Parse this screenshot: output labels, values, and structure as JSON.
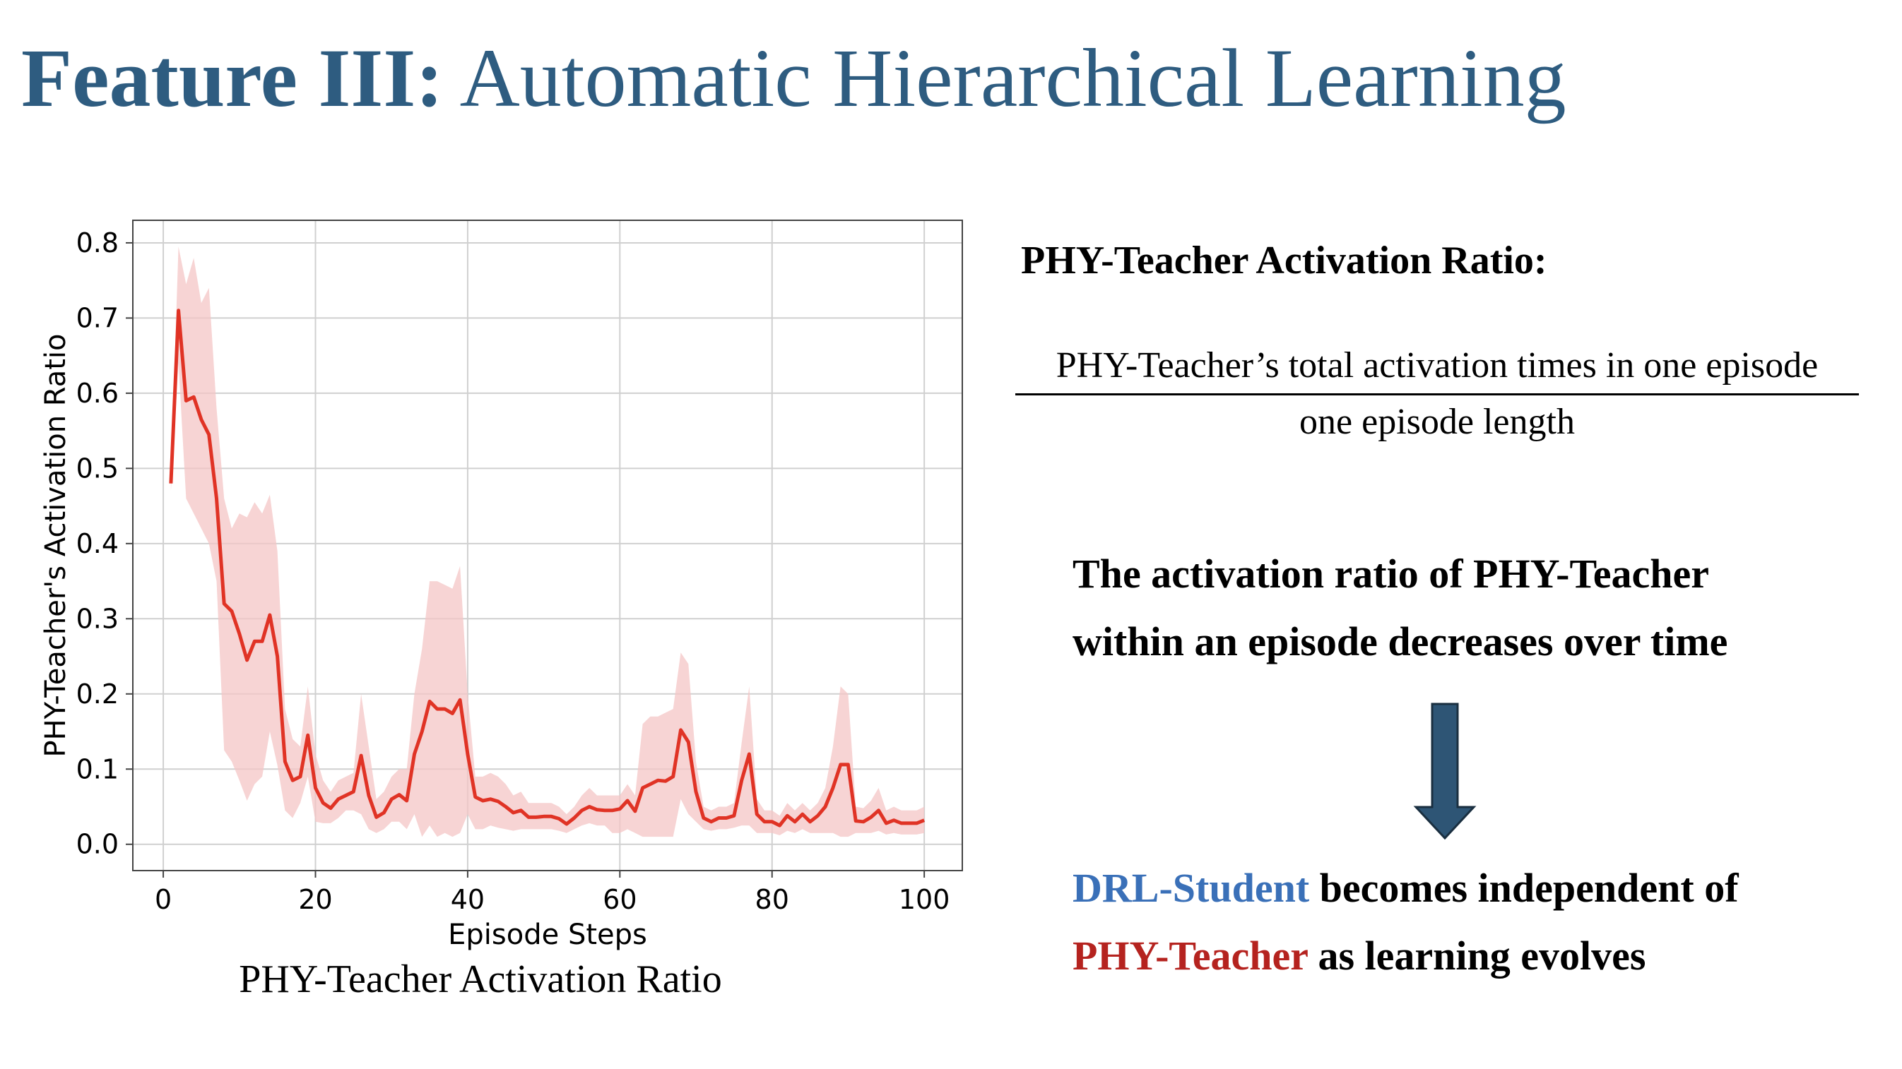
{
  "title": {
    "bold": "Feature III:",
    "rest": "Automatic Hierarchical Learning"
  },
  "chart_data": {
    "type": "line",
    "title": "",
    "caption": "PHY-Teacher Activation Ratio",
    "xlabel": "Episode Steps",
    "ylabel": "PHY-Teacher's Activation Ratio",
    "xlim": [
      -4,
      105
    ],
    "ylim": [
      -0.035,
      0.83
    ],
    "xticks": [
      0,
      20,
      40,
      60,
      80,
      100
    ],
    "yticks": [
      0.0,
      0.1,
      0.2,
      0.3,
      0.4,
      0.5,
      0.6,
      0.7,
      0.8
    ],
    "grid": true,
    "colors": {
      "line": "#e03325",
      "band": "#f4c6c6"
    },
    "series": [
      {
        "x": [
          1,
          2,
          3,
          4,
          5,
          6,
          7,
          8,
          9,
          10,
          11,
          12,
          13,
          14,
          15,
          16,
          17,
          18,
          19,
          20,
          21,
          22,
          23,
          24,
          25,
          26,
          27,
          28,
          29,
          30,
          31,
          32,
          33,
          34,
          35,
          36,
          37,
          38,
          39,
          40,
          41,
          42,
          43,
          44,
          45,
          46,
          47,
          48,
          49,
          50,
          51,
          52,
          53,
          54,
          55,
          56,
          57,
          58,
          59,
          60,
          61,
          62,
          63,
          64,
          65,
          66,
          67,
          68,
          69,
          70,
          71,
          72,
          73,
          74,
          75,
          76,
          77,
          78,
          79,
          80,
          81,
          82,
          83,
          84,
          85,
          86,
          87,
          88,
          89,
          90,
          91,
          92,
          93,
          94,
          95,
          96,
          97,
          98,
          99,
          100
        ],
        "values": [
          0.48,
          0.71,
          0.59,
          0.595,
          0.565,
          0.545,
          0.46,
          0.32,
          0.31,
          0.28,
          0.245,
          0.27,
          0.27,
          0.305,
          0.25,
          0.11,
          0.085,
          0.09,
          0.145,
          0.075,
          0.055,
          0.048,
          0.06,
          0.065,
          0.07,
          0.118,
          0.065,
          0.036,
          0.042,
          0.06,
          0.066,
          0.058,
          0.12,
          0.15,
          0.19,
          0.18,
          0.18,
          0.174,
          0.192,
          0.12,
          0.063,
          0.058,
          0.06,
          0.057,
          0.05,
          0.042,
          0.045,
          0.036,
          0.036,
          0.037,
          0.037,
          0.034,
          0.027,
          0.035,
          0.045,
          0.05,
          0.046,
          0.045,
          0.045,
          0.047,
          0.058,
          0.044,
          0.075,
          0.08,
          0.085,
          0.084,
          0.09,
          0.152,
          0.136,
          0.07,
          0.035,
          0.03,
          0.035,
          0.035,
          0.038,
          0.085,
          0.12,
          0.04,
          0.03,
          0.03,
          0.025,
          0.038,
          0.03,
          0.04,
          0.03,
          0.038,
          0.05,
          0.075,
          0.106,
          0.106,
          0.031,
          0.03,
          0.036,
          0.045,
          0.028,
          0.032,
          0.028,
          0.028,
          0.028,
          0.032
        ],
        "upper": [
          0.49,
          0.795,
          0.745,
          0.78,
          0.72,
          0.74,
          0.58,
          0.46,
          0.42,
          0.44,
          0.435,
          0.455,
          0.44,
          0.465,
          0.39,
          0.18,
          0.14,
          0.13,
          0.21,
          0.12,
          0.085,
          0.07,
          0.085,
          0.09,
          0.095,
          0.2,
          0.13,
          0.06,
          0.07,
          0.09,
          0.1,
          0.1,
          0.2,
          0.26,
          0.35,
          0.35,
          0.345,
          0.34,
          0.37,
          0.2,
          0.09,
          0.09,
          0.095,
          0.09,
          0.08,
          0.065,
          0.07,
          0.055,
          0.055,
          0.055,
          0.055,
          0.05,
          0.04,
          0.05,
          0.065,
          0.075,
          0.065,
          0.065,
          0.065,
          0.065,
          0.08,
          0.065,
          0.16,
          0.17,
          0.17,
          0.175,
          0.18,
          0.255,
          0.24,
          0.11,
          0.05,
          0.045,
          0.05,
          0.05,
          0.055,
          0.135,
          0.21,
          0.06,
          0.045,
          0.045,
          0.038,
          0.055,
          0.045,
          0.055,
          0.045,
          0.055,
          0.075,
          0.13,
          0.21,
          0.2,
          0.05,
          0.048,
          0.058,
          0.075,
          0.045,
          0.05,
          0.045,
          0.045,
          0.045,
          0.05
        ],
        "lower": [
          0.47,
          0.64,
          0.46,
          0.44,
          0.42,
          0.4,
          0.35,
          0.125,
          0.11,
          0.085,
          0.058,
          0.08,
          0.09,
          0.15,
          0.105,
          0.045,
          0.035,
          0.055,
          0.09,
          0.03,
          0.028,
          0.028,
          0.035,
          0.045,
          0.045,
          0.04,
          0.02,
          0.015,
          0.02,
          0.03,
          0.03,
          0.02,
          0.04,
          0.01,
          0.025,
          0.01,
          0.015,
          0.01,
          0.015,
          0.04,
          0.02,
          0.02,
          0.025,
          0.022,
          0.02,
          0.018,
          0.02,
          0.02,
          0.02,
          0.02,
          0.02,
          0.018,
          0.015,
          0.02,
          0.025,
          0.028,
          0.025,
          0.025,
          0.015,
          0.015,
          0.02,
          0.015,
          0.01,
          0.01,
          0.01,
          0.01,
          0.01,
          0.06,
          0.04,
          0.03,
          0.02,
          0.018,
          0.02,
          0.02,
          0.022,
          0.025,
          0.025,
          0.015,
          0.015,
          0.015,
          0.012,
          0.018,
          0.015,
          0.02,
          0.015,
          0.015,
          0.015,
          0.015,
          0.01,
          0.01,
          0.015,
          0.015,
          0.015,
          0.018,
          0.013,
          0.015,
          0.013,
          0.013,
          0.013,
          0.015
        ]
      }
    ]
  },
  "formula": {
    "heading": "PHY-Teacher Activation Ratio:",
    "numerator": "PHY-Teacher’s total activation times in one episode",
    "denominator": "one episode length"
  },
  "statement": {
    "line1": "The activation ratio of PHY-Teacher",
    "line2": "within an episode decreases over time"
  },
  "arrow": {
    "icon": "down-arrow-icon",
    "fill": "#2e5575",
    "stroke": "#1a2f40"
  },
  "conclusion": {
    "student": "DRL-Student",
    "middle": " becomes independent of",
    "teacher": "PHY-Teacher",
    "end": " as learning evolves"
  }
}
